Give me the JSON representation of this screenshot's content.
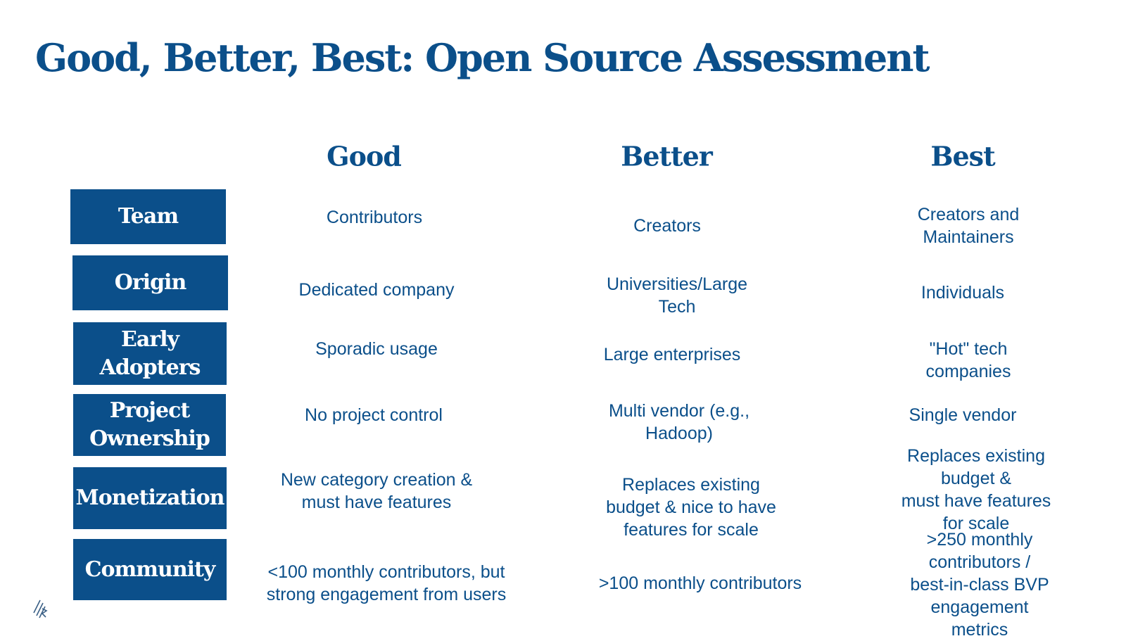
{
  "title": "Good, Better, Best: Open Source Assessment",
  "columns": [
    "Good",
    "Better",
    "Best"
  ],
  "rows": [
    {
      "label": "Team",
      "good": "Contributors",
      "better": "Creators",
      "best": "Creators and Maintainers"
    },
    {
      "label": "Origin",
      "good": "Dedicated company",
      "better": "Universities/Large\nTech",
      "best": "Individuals"
    },
    {
      "label": "Early\nAdopters",
      "good": "Sporadic usage",
      "better": "Large enterprises",
      "best": "\"Hot\" tech companies"
    },
    {
      "label": "Project\nOwnership",
      "good": "No project control",
      "better": "Multi vendor (e.g.,\nHadoop)",
      "best": "Single vendor"
    },
    {
      "label": "Monetization",
      "good": "New category creation &\nmust have features",
      "better": "Replaces existing\nbudget & nice to have\nfeatures for scale",
      "best": "Replaces existing budget &\nmust have features for scale"
    },
    {
      "label": "Community",
      "good": "<100 monthly contributors, but\nstrong engagement from users",
      "better": ">100 monthly contributors",
      "best": ">250 monthly contributors /\nbest-in-class BVP\nengagement metrics"
    }
  ],
  "colors": {
    "brand": "#0b4f8a",
    "background": "#ffffff"
  },
  "logo": {
    "icon": "diagonal-stripes-logo"
  }
}
